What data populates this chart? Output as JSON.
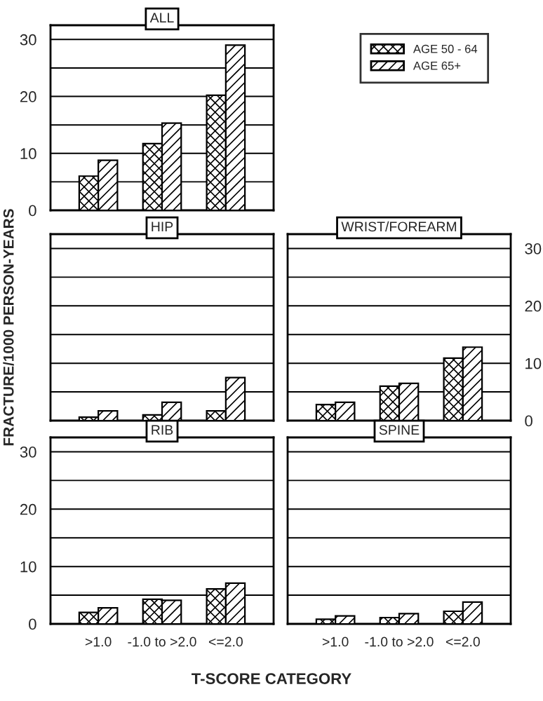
{
  "chart_data": [
    {
      "type": "bar",
      "title": "ALL",
      "categories": [
        null,
        null,
        null
      ],
      "ylim": [
        0,
        32.5
      ],
      "yticks": [
        0,
        {
          "value": 5,
          "label": null
        },
        10,
        {
          "value": 15,
          "label": null
        },
        20,
        {
          "value": 25,
          "label": null
        },
        30
      ],
      "grid": "y",
      "tick_labels": "y",
      "legend": "right",
      "series": [
        {
          "name": "AGE 50 - 64",
          "color": "#000000",
          "values": [
            6.0,
            11.7,
            20.2
          ]
        },
        {
          "name": "AGE 65+",
          "color": "#000000",
          "values": [
            8.8,
            15.3,
            29.0
          ]
        }
      ]
    },
    {
      "type": "bar",
      "title": "HIP",
      "ylabel": "FRACTURE/1000 PERSON-YEARS",
      "categories": [
        null,
        null,
        null
      ],
      "ylim": [
        0,
        32.5
      ],
      "yticks": [
        0,
        {
          "value": 5,
          "label": null
        },
        10,
        {
          "value": 15,
          "label": null
        },
        20,
        {
          "value": 25,
          "label": null
        },
        30
      ],
      "grid": "y",
      "tick_labels": false,
      "series": [
        {
          "color": "#000000",
          "values": [
            0.6,
            1.0,
            1.7
          ]
        },
        {
          "color": "#000000",
          "values": [
            1.7,
            3.2,
            7.5
          ]
        }
      ]
    },
    {
      "type": "bar",
      "title": "WRIST/FOREARM",
      "categories": [
        null,
        null,
        null
      ],
      "ylim": [
        0,
        32.5
      ],
      "yticks": [
        0,
        {
          "value": 5,
          "label": null
        },
        10,
        {
          "value": 15,
          "label": null
        },
        20,
        {
          "value": 25,
          "label": null
        },
        30
      ],
      "grid": "y",
      "tick_labels": "y",
      "series": [
        {
          "color": "#000000",
          "values": [
            2.8,
            6.0,
            10.9
          ]
        },
        {
          "color": "#000000",
          "values": [
            3.2,
            6.5,
            12.8
          ]
        }
      ]
    },
    {
      "type": "bar",
      "title": "RIB",
      "xlabel": "T-SCORE CATEGORY",
      "categories": [
        ">1.0",
        "-1.0 to >2.0",
        "<=2.0"
      ],
      "ylim": [
        0,
        32.5
      ],
      "yticks": [
        0,
        {
          "value": 5,
          "label": null
        },
        10,
        {
          "value": 15,
          "label": null
        },
        20,
        {
          "value": 25,
          "label": null
        },
        30
      ],
      "grid": "y",
      "series": [
        {
          "color": "#000000",
          "values": [
            2.0,
            4.3,
            6.1
          ]
        },
        {
          "color": "#000000",
          "values": [
            2.8,
            4.1,
            7.1
          ]
        }
      ]
    },
    {
      "type": "bar",
      "title": "SPINE",
      "categories": [
        ">1.0",
        "-1.0 to >2.0",
        "<=2.0"
      ],
      "ylim": [
        0,
        32.5
      ],
      "yticks": [
        0,
        {
          "value": 5,
          "label": null
        },
        10,
        {
          "value": 15,
          "label": null
        },
        20,
        {
          "value": 25,
          "label": null
        },
        30
      ],
      "grid": "y",
      "tick_labels": "x",
      "series": [
        {
          "color": "#000000",
          "values": [
            0.8,
            1.1,
            2.2
          ]
        },
        {
          "color": "#000000",
          "values": [
            1.4,
            1.8,
            3.8
          ]
        }
      ]
    }
  ]
}
